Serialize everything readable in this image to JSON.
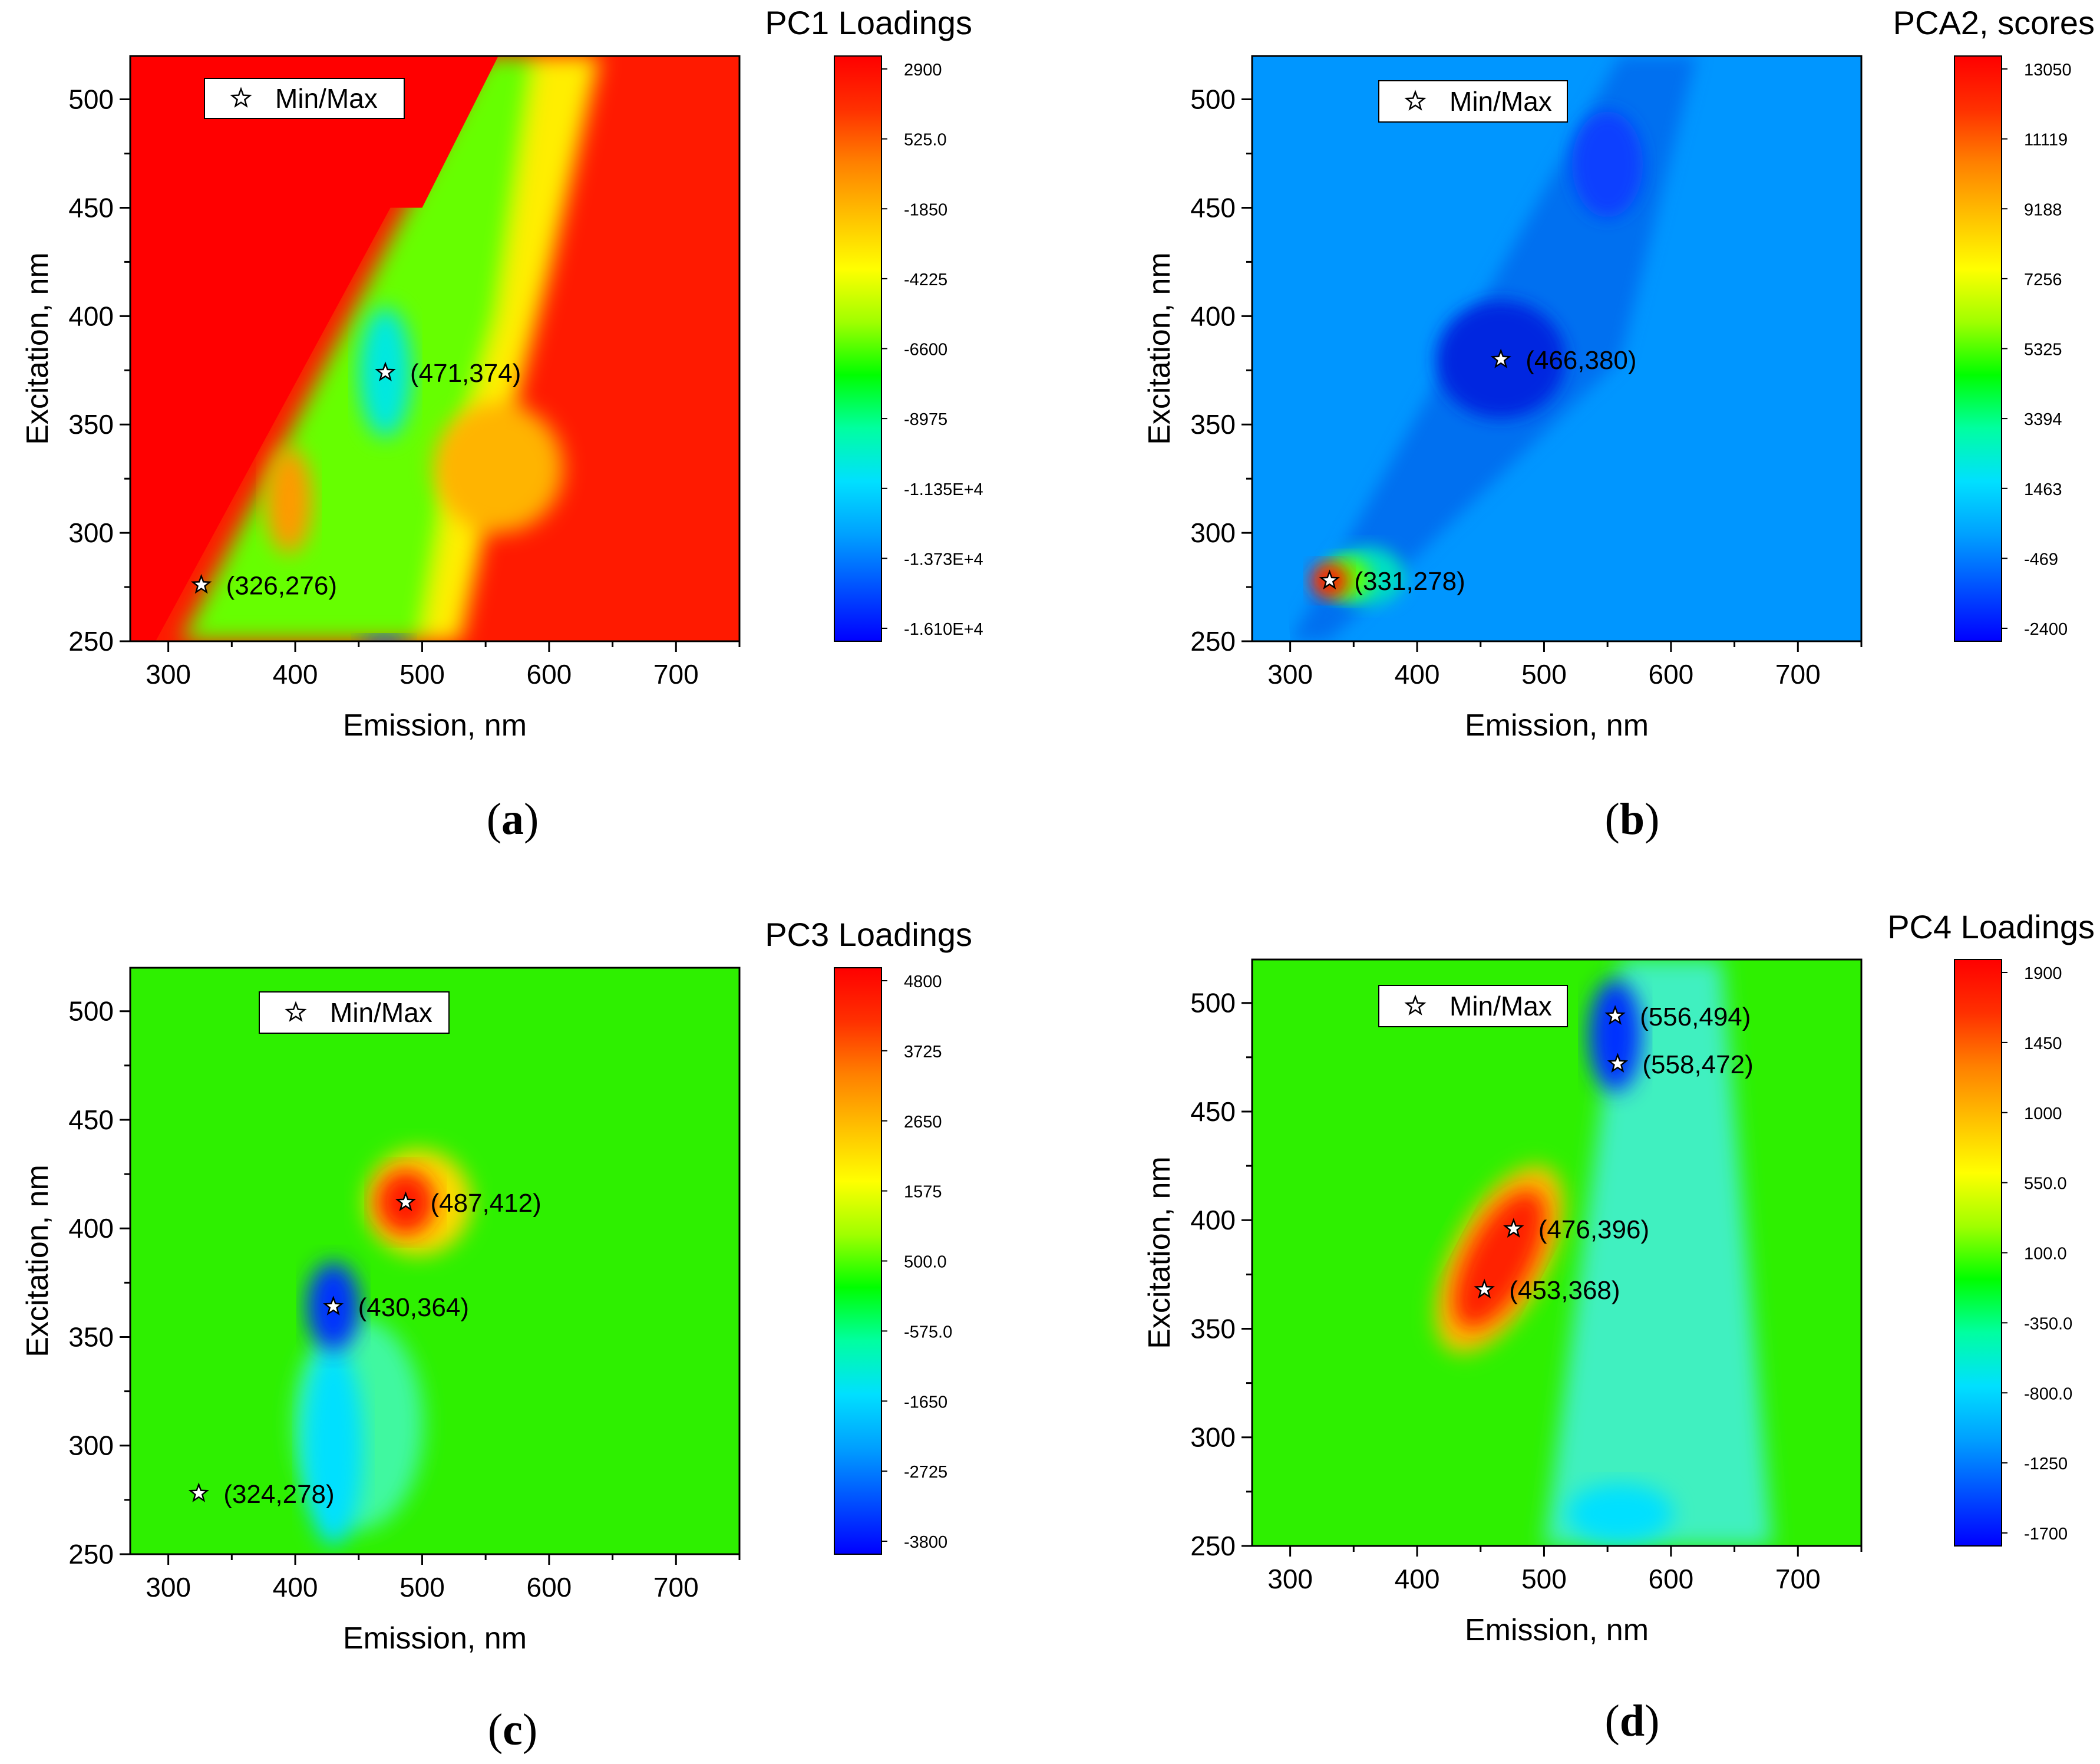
{
  "legend_label": "Min/Max",
  "chart_data": [
    {
      "id": "a",
      "type": "heatmap",
      "title": "PC1 Loadings",
      "xlabel": "Emission, nm",
      "ylabel": "Excitation, nm",
      "xlim": [
        270,
        750
      ],
      "ylim": [
        250,
        520
      ],
      "xticks": [
        "300",
        "400",
        "500",
        "600",
        "700"
      ],
      "yticks": [
        "250",
        "300",
        "350",
        "400",
        "450",
        "500"
      ],
      "colorbar_labels": [
        "2900",
        "525.0",
        "-1850",
        "-4225",
        "-6600",
        "-8975",
        "-1.135E+4",
        "-1.373E+4",
        "-1.610E+4"
      ],
      "points": [
        {
          "x": 471,
          "y": 374,
          "label": "(471,374)"
        },
        {
          "x": 326,
          "y": 276,
          "label": "(326,276)"
        }
      ],
      "caption": "a"
    },
    {
      "id": "b",
      "type": "heatmap",
      "title": "PCA2, scores",
      "xlabel": "Emission, nm",
      "ylabel": "Excitation, nm",
      "xlim": [
        270,
        750
      ],
      "ylim": [
        250,
        520
      ],
      "xticks": [
        "300",
        "400",
        "500",
        "600",
        "700"
      ],
      "yticks": [
        "250",
        "300",
        "350",
        "400",
        "450",
        "500"
      ],
      "colorbar_labels": [
        "13050",
        "11119",
        "9188",
        "7256",
        "5325",
        "3394",
        "1463",
        "-469",
        "-2400"
      ],
      "points": [
        {
          "x": 466,
          "y": 380,
          "label": "(466,380)"
        },
        {
          "x": 331,
          "y": 278,
          "label": "(331,278)"
        }
      ],
      "caption": "b"
    },
    {
      "id": "c",
      "type": "heatmap",
      "title": "PC3 Loadings",
      "xlabel": "Emission, nm",
      "ylabel": "Excitation, nm",
      "xlim": [
        270,
        750
      ],
      "ylim": [
        250,
        520
      ],
      "xticks": [
        "300",
        "400",
        "500",
        "600",
        "700"
      ],
      "yticks": [
        "250",
        "300",
        "350",
        "400",
        "450",
        "500"
      ],
      "colorbar_labels": [
        "4800",
        "3725",
        "2650",
        "1575",
        "500.0",
        "-575.0",
        "-1650",
        "-2725",
        "-3800"
      ],
      "points": [
        {
          "x": 487,
          "y": 412,
          "label": "(487,412)"
        },
        {
          "x": 430,
          "y": 364,
          "label": "(430,364)"
        },
        {
          "x": 324,
          "y": 278,
          "label": "(324,278)"
        }
      ],
      "caption": "c"
    },
    {
      "id": "d",
      "type": "heatmap",
      "title": "PC4 Loadings",
      "xlabel": "Emission, nm",
      "ylabel": "Excitation, nm",
      "xlim": [
        270,
        750
      ],
      "ylim": [
        250,
        520
      ],
      "xticks": [
        "300",
        "400",
        "500",
        "600",
        "700"
      ],
      "yticks": [
        "250",
        "300",
        "350",
        "400",
        "450",
        "500"
      ],
      "colorbar_labels": [
        "1900",
        "1450",
        "1000",
        "550.0",
        "100.0",
        "-350.0",
        "-800.0",
        "-1250",
        "-1700"
      ],
      "points": [
        {
          "x": 556,
          "y": 494,
          "label": "(556,494)"
        },
        {
          "x": 558,
          "y": 472,
          "label": "(558,472)"
        },
        {
          "x": 476,
          "y": 396,
          "label": "(476,396)"
        },
        {
          "x": 453,
          "y": 368,
          "label": "(453,368)"
        }
      ],
      "caption": "d"
    }
  ]
}
